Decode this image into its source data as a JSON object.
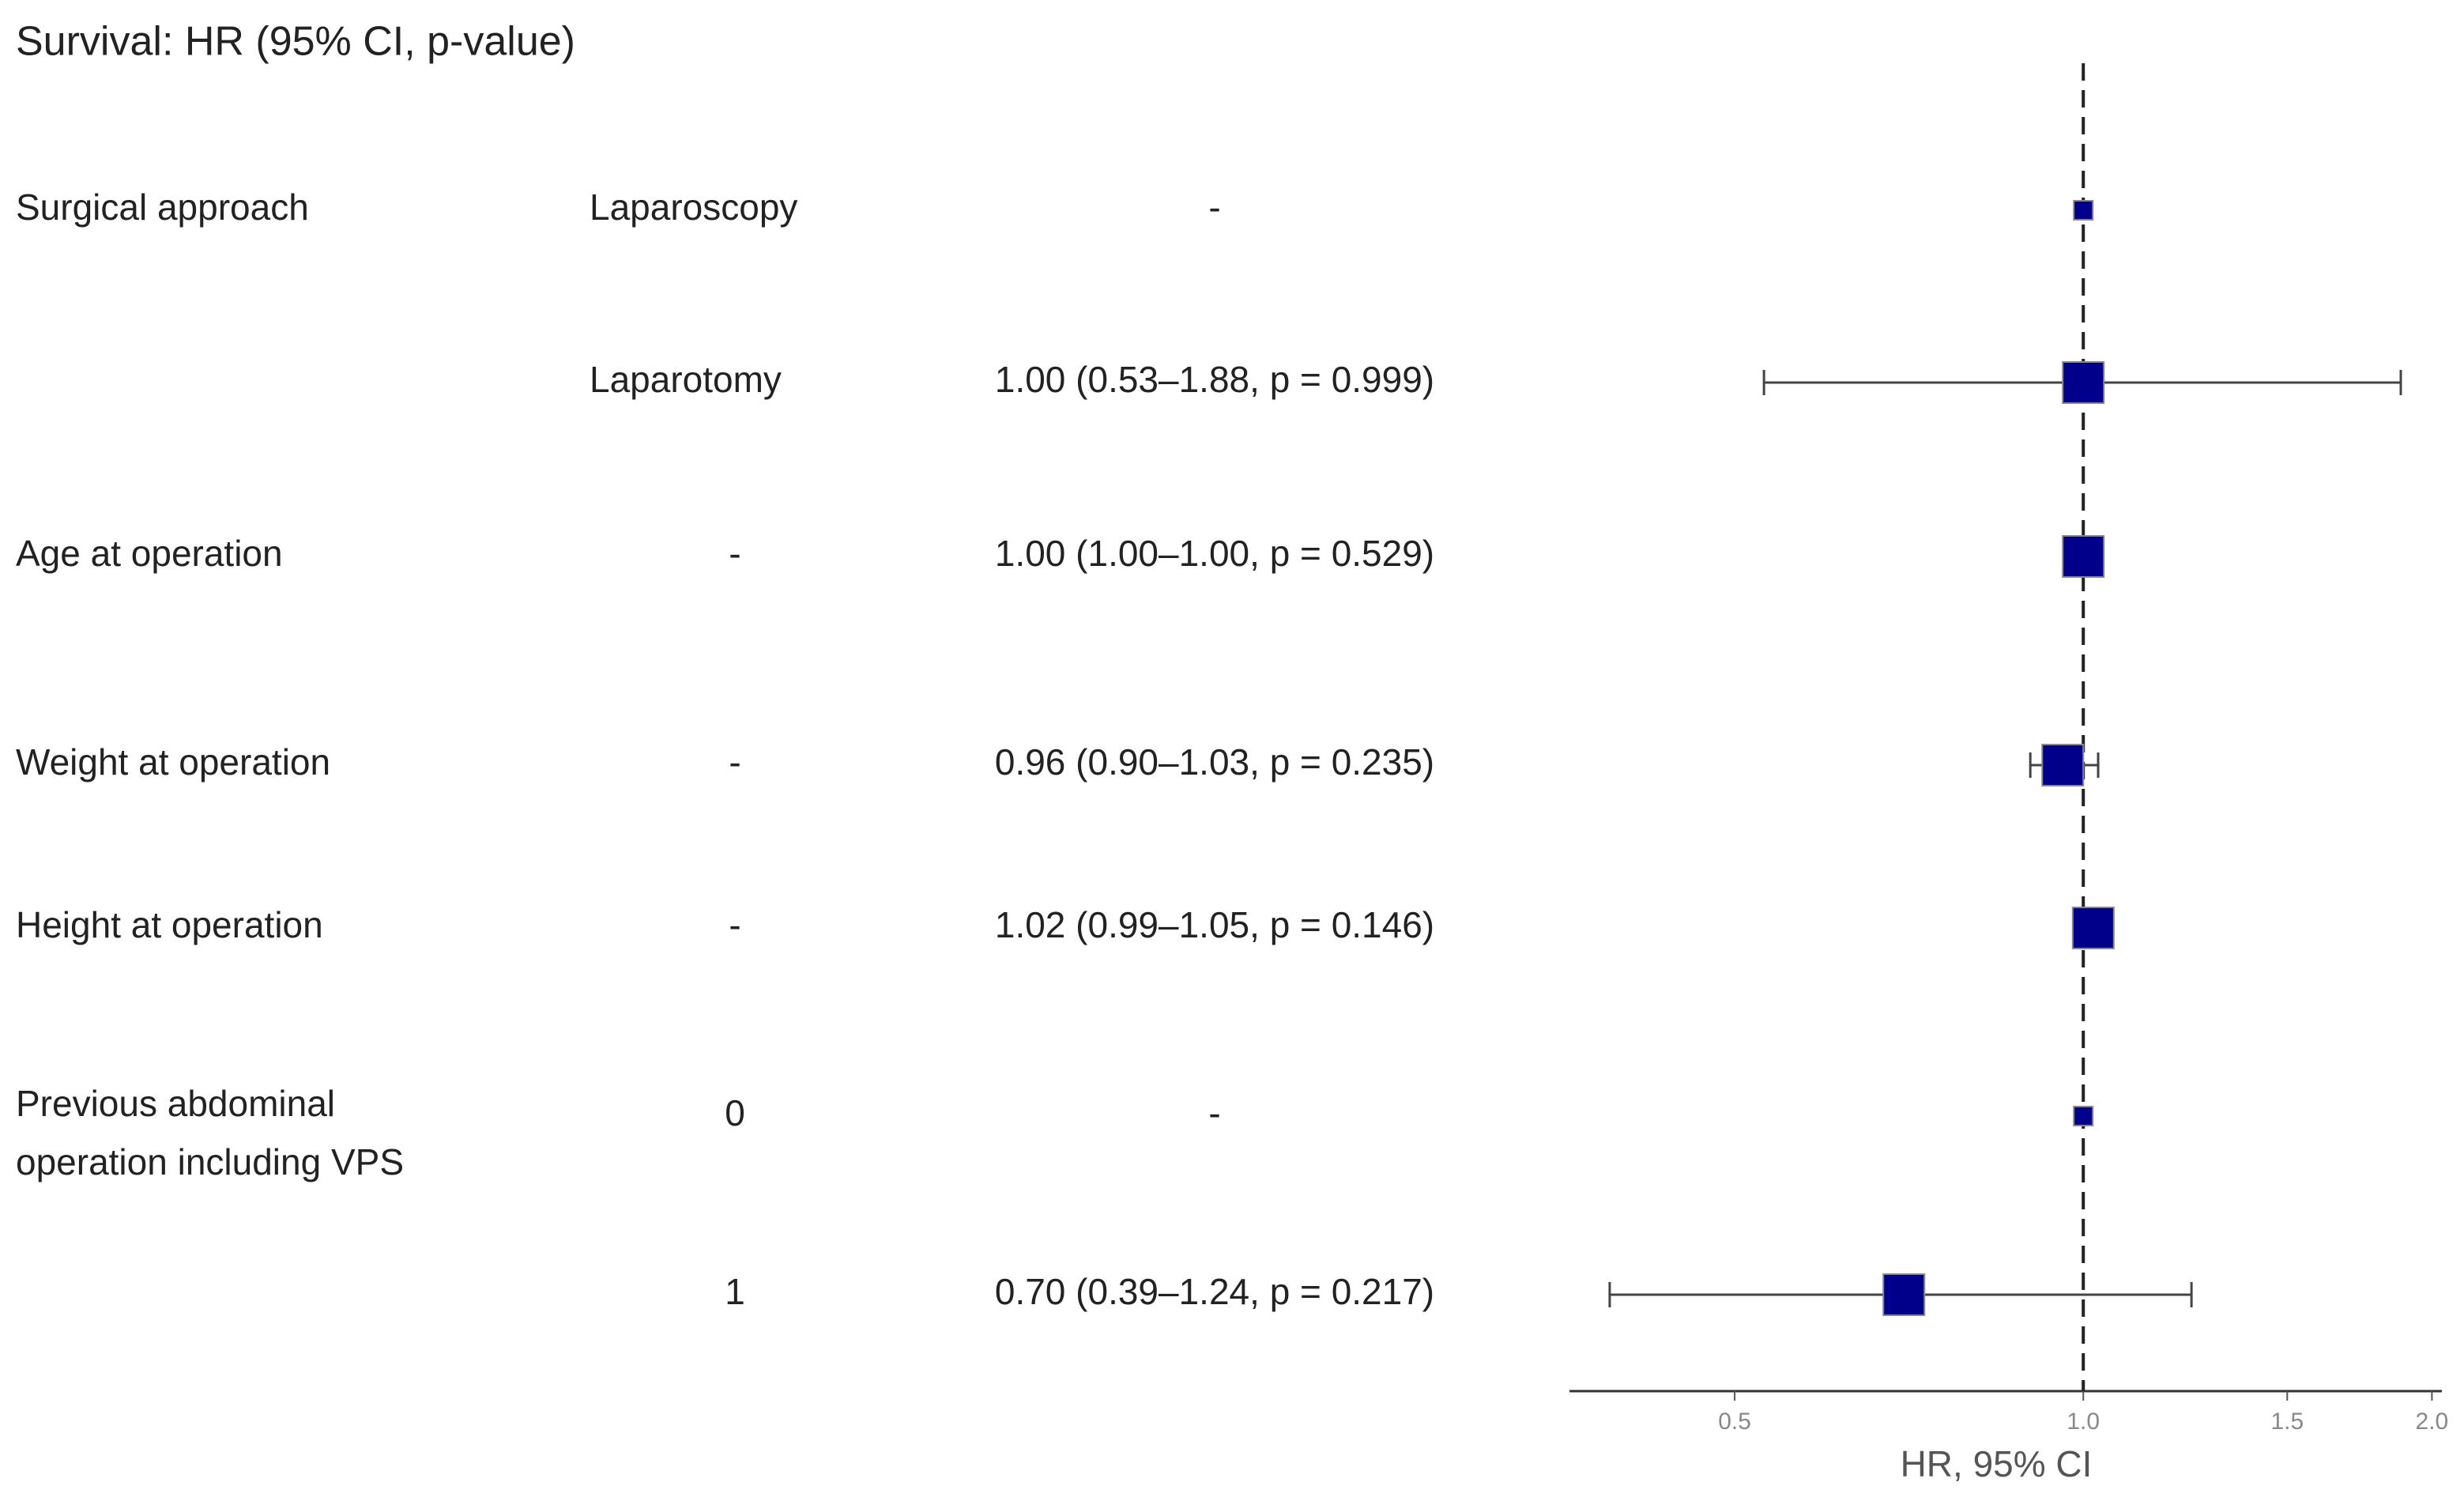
{
  "chart_data": {
    "type": "forest",
    "title": "Survival: HR (95% CI, p-value)",
    "xlabel": "HR, 95% CI",
    "xscale": "log",
    "xlim": [
      0.36,
      2.04
    ],
    "xticks": [
      0.5,
      {
        "value": 1,
        "label": "1.0"
      },
      1.5,
      {
        "value": 2,
        "label": "2.0"
      }
    ],
    "reference_line": 1,
    "color": "#00008b",
    "rows": [
      {
        "variable": [
          "Surgical approach"
        ],
        "level": "Laparoscopy",
        "label": "-",
        "hr": null,
        "lower": null,
        "upper": null
      },
      {
        "variable": null,
        "level": "Laparotomy",
        "label": "1.00 (0.53–1.88, p = 0.999)",
        "hr": 1.0,
        "lower": 0.53,
        "upper": 1.88
      },
      {
        "variable": [
          "Age at operation"
        ],
        "level": "-",
        "label": "1.00 (1.00–1.00, p = 0.529)",
        "hr": 1.0,
        "lower": 1.0,
        "upper": 1.0
      },
      {
        "variable": [
          "Weight at operation"
        ],
        "level": "-",
        "label": "0.96 (0.90–1.03, p = 0.235)",
        "hr": 0.96,
        "lower": 0.9,
        "upper": 1.03
      },
      {
        "variable": [
          "Height at operation"
        ],
        "level": "-",
        "label": "1.02 (0.99–1.05, p = 0.146)",
        "hr": 1.02,
        "lower": 0.99,
        "upper": 1.05
      },
      {
        "variable": [
          "Previous abdominal",
          "operation including VPS"
        ],
        "level": "0",
        "label": "-",
        "hr": null,
        "lower": null,
        "upper": null
      },
      {
        "variable": null,
        "level": "1",
        "label": "0.70 (0.39–1.24, p = 0.217)",
        "hr": 0.7,
        "lower": 0.39,
        "upper": 1.24
      }
    ]
  }
}
